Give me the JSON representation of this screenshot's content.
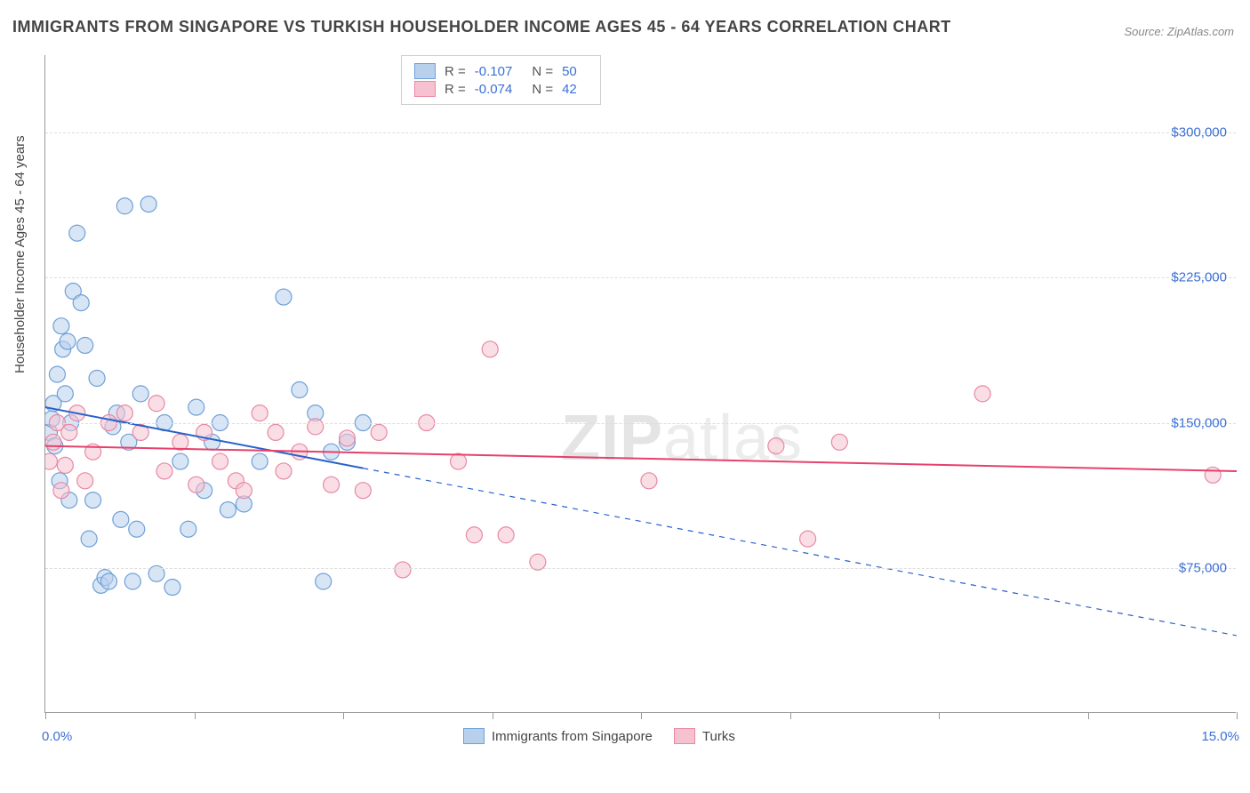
{
  "title": "IMMIGRANTS FROM SINGAPORE VS TURKISH HOUSEHOLDER INCOME AGES 45 - 64 YEARS CORRELATION CHART",
  "source_label": "Source: ZipAtlas.com",
  "watermark_a": "ZIP",
  "watermark_b": "atlas",
  "ylabel": "Householder Income Ages 45 - 64 years",
  "chart": {
    "type": "scatter",
    "xlim": [
      0,
      15
    ],
    "ylim": [
      0,
      340000
    ],
    "xaxis_min_label": "0.0%",
    "xaxis_max_label": "15.0%",
    "ytick_values": [
      75000,
      150000,
      225000,
      300000
    ],
    "ytick_labels": [
      "$75,000",
      "$150,000",
      "$225,000",
      "$300,000"
    ],
    "xtick_positions_pct": [
      0,
      12.5,
      25,
      37.5,
      50,
      62.5,
      75,
      87.5,
      100
    ],
    "grid_color": "#dddddd",
    "axis_color": "#999999",
    "background_color": "#ffffff",
    "series": [
      {
        "name": "Immigrants from Singapore",
        "fill": "#b8d0ec",
        "stroke": "#6fa0d8",
        "fill_opacity": 0.55,
        "marker_radius": 9,
        "R": "-0.107",
        "N": "50",
        "trend": {
          "y_at_x0": 158000,
          "y_at_x15": 40000,
          "solid_until_x": 4.0,
          "color": "#2a62c9",
          "width": 2
        },
        "points": [
          [
            0.05,
            145000
          ],
          [
            0.08,
            152000
          ],
          [
            0.1,
            160000
          ],
          [
            0.12,
            138000
          ],
          [
            0.15,
            175000
          ],
          [
            0.18,
            120000
          ],
          [
            0.2,
            200000
          ],
          [
            0.22,
            188000
          ],
          [
            0.25,
            165000
          ],
          [
            0.28,
            192000
          ],
          [
            0.3,
            110000
          ],
          [
            0.32,
            150000
          ],
          [
            0.35,
            218000
          ],
          [
            0.4,
            248000
          ],
          [
            0.45,
            212000
          ],
          [
            0.5,
            190000
          ],
          [
            0.55,
            90000
          ],
          [
            0.6,
            110000
          ],
          [
            0.65,
            173000
          ],
          [
            0.7,
            66000
          ],
          [
            0.75,
            70000
          ],
          [
            0.8,
            68000
          ],
          [
            0.85,
            148000
          ],
          [
            0.9,
            155000
          ],
          [
            0.95,
            100000
          ],
          [
            1.0,
            262000
          ],
          [
            1.05,
            140000
          ],
          [
            1.1,
            68000
          ],
          [
            1.15,
            95000
          ],
          [
            1.2,
            165000
          ],
          [
            1.3,
            263000
          ],
          [
            1.4,
            72000
          ],
          [
            1.5,
            150000
          ],
          [
            1.6,
            65000
          ],
          [
            1.7,
            130000
          ],
          [
            1.8,
            95000
          ],
          [
            1.9,
            158000
          ],
          [
            2.0,
            115000
          ],
          [
            2.1,
            140000
          ],
          [
            2.2,
            150000
          ],
          [
            2.3,
            105000
          ],
          [
            2.5,
            108000
          ],
          [
            2.7,
            130000
          ],
          [
            3.0,
            215000
          ],
          [
            3.2,
            167000
          ],
          [
            3.4,
            155000
          ],
          [
            3.5,
            68000
          ],
          [
            3.6,
            135000
          ],
          [
            3.8,
            140000
          ],
          [
            4.0,
            150000
          ]
        ]
      },
      {
        "name": "Turks",
        "fill": "#f6c2cf",
        "stroke": "#e889a3",
        "fill_opacity": 0.55,
        "marker_radius": 9,
        "R": "-0.074",
        "N": "42",
        "trend": {
          "y_at_x0": 138000,
          "y_at_x15": 125000,
          "solid_until_x": 15.0,
          "color": "#e6416b",
          "width": 2
        },
        "points": [
          [
            0.05,
            130000
          ],
          [
            0.1,
            140000
          ],
          [
            0.15,
            150000
          ],
          [
            0.2,
            115000
          ],
          [
            0.25,
            128000
          ],
          [
            0.3,
            145000
          ],
          [
            0.4,
            155000
          ],
          [
            0.5,
            120000
          ],
          [
            0.6,
            135000
          ],
          [
            0.8,
            150000
          ],
          [
            1.0,
            155000
          ],
          [
            1.2,
            145000
          ],
          [
            1.4,
            160000
          ],
          [
            1.5,
            125000
          ],
          [
            1.7,
            140000
          ],
          [
            1.9,
            118000
          ],
          [
            2.0,
            145000
          ],
          [
            2.2,
            130000
          ],
          [
            2.4,
            120000
          ],
          [
            2.5,
            115000
          ],
          [
            2.7,
            155000
          ],
          [
            2.9,
            145000
          ],
          [
            3.0,
            125000
          ],
          [
            3.2,
            135000
          ],
          [
            3.4,
            148000
          ],
          [
            3.6,
            118000
          ],
          [
            3.8,
            142000
          ],
          [
            4.0,
            115000
          ],
          [
            4.2,
            145000
          ],
          [
            4.5,
            74000
          ],
          [
            4.8,
            150000
          ],
          [
            5.2,
            130000
          ],
          [
            5.4,
            92000
          ],
          [
            5.6,
            188000
          ],
          [
            5.8,
            92000
          ],
          [
            6.2,
            78000
          ],
          [
            7.6,
            120000
          ],
          [
            9.2,
            138000
          ],
          [
            9.6,
            90000
          ],
          [
            10.0,
            140000
          ],
          [
            11.8,
            165000
          ],
          [
            14.7,
            123000
          ]
        ]
      }
    ]
  },
  "legend_bottom": [
    {
      "label": "Immigrants from Singapore",
      "fill": "#b8d0ec",
      "stroke": "#6fa0d8"
    },
    {
      "label": "Turks",
      "fill": "#f6c2cf",
      "stroke": "#e889a3"
    }
  ],
  "colors": {
    "title": "#444444",
    "source": "#888888",
    "tick_label": "#3b6fd6",
    "stat_val": "#3b6fd6"
  },
  "fontsize": {
    "title": 18,
    "axis_label": 15,
    "tick": 15,
    "legend": 15
  }
}
